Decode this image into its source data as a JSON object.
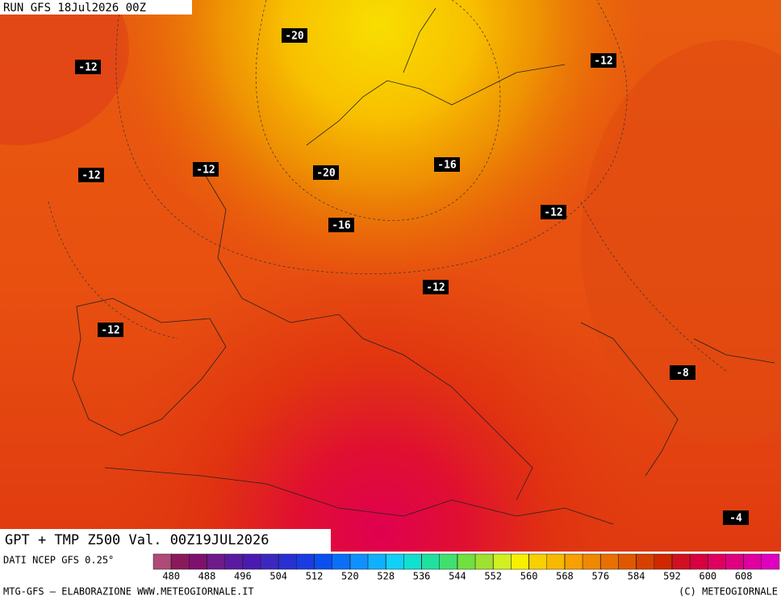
{
  "run_label": "RUN GFS 18Jul2026 00Z",
  "map_title": "GPT + TMP Z500 Val. 00Z19JUL2026",
  "data_source": "DATI NCEP GFS 0.25°",
  "credit_left": "MTG-GFS — ELABORAZIONE WWW.METEOGIORNALE.IT",
  "credit_right": "(C) METEOGIORNALE",
  "temperature_labels": [
    -20,
    -12,
    -12,
    -12,
    -12,
    -20,
    -16,
    -12,
    -16,
    -12,
    -12,
    -8,
    -4
  ],
  "colorbar": {
    "range": [
      476,
      616
    ],
    "ticks": [
      480,
      488,
      496,
      504,
      512,
      520,
      528,
      536,
      544,
      552,
      560,
      568,
      576,
      584,
      592,
      600,
      608
    ],
    "colors": [
      "#b04a78",
      "#8a1a5a",
      "#80106e",
      "#6e1a8a",
      "#5a1aa0",
      "#4a1ab0",
      "#3c28c0",
      "#2a30d0",
      "#1a3ce0",
      "#0a50f0",
      "#0a70f8",
      "#1090ff",
      "#10b0ff",
      "#10d0f8",
      "#10e0d0",
      "#20e0a0",
      "#40e070",
      "#70e040",
      "#a0e030",
      "#d0f020",
      "#f8f000",
      "#f8d000",
      "#f8b800",
      "#f8a000",
      "#f08800",
      "#e87000",
      "#e05800",
      "#d84000",
      "#d02800",
      "#d01020",
      "#d80040",
      "#e00060",
      "#e00080",
      "#e000a0",
      "#e000c0"
    ]
  }
}
